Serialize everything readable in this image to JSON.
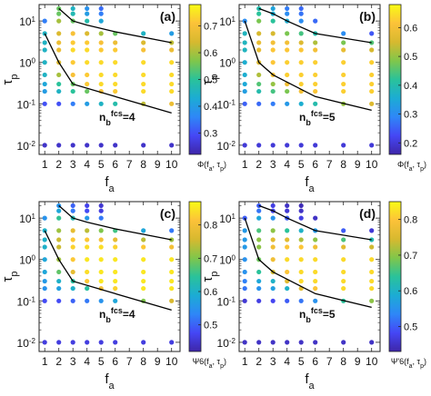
{
  "figure": {
    "colormap": [
      "#3e26a8",
      "#4547f5",
      "#2e87f7",
      "#1cacd4",
      "#2ac29a",
      "#81c64a",
      "#d7b92f",
      "#fcc239",
      "#f9fb15"
    ]
  },
  "chart_data": [
    {
      "type": "scatter",
      "panel": "(a)",
      "xlabel": "f_a",
      "ylabel": "τ_p",
      "x_ticks": [
        "1",
        "2",
        "3",
        "4",
        "5",
        "6",
        "7",
        "8",
        "9",
        "10"
      ],
      "y_ticks": [
        "10^-2",
        "10^-1",
        "10^0",
        "10^1"
      ],
      "xlim": [
        0.6,
        10.6
      ],
      "ylim": [
        0.006,
        25
      ],
      "yscale": "log",
      "annotation": "n_b^fcs=4",
      "colorbar": {
        "label": "Φ(f_a, τ_p)",
        "ticks": [
          "0.3",
          "0.4",
          "0.5",
          "0.6",
          "0.7"
        ],
        "range": [
          0.22,
          0.78
        ]
      },
      "boundary": {
        "upper": [
          [
            2,
            20
          ],
          [
            3,
            10
          ],
          [
            4,
            8
          ],
          [
            6,
            5.5
          ],
          [
            10,
            3
          ]
        ],
        "lower": [
          [
            1,
            5
          ],
          [
            2,
            1
          ],
          [
            3,
            0.3
          ],
          [
            6,
            0.15
          ],
          [
            10,
            0.06
          ]
        ]
      },
      "x": [
        1,
        2,
        3,
        4,
        5,
        6,
        8,
        10
      ],
      "y": [
        20,
        15,
        10,
        5,
        3,
        2,
        1,
        0.5,
        0.3,
        0.2,
        0.1,
        0.01
      ],
      "values": [
        [
          null,
          0.55,
          0.45,
          0.38,
          0.33,
          null,
          null,
          null
        ],
        [
          null,
          0.55,
          0.47,
          0.4,
          0.35,
          null,
          null,
          null
        ],
        [
          0.35,
          0.6,
          0.55,
          0.48,
          0.42,
          null,
          null,
          null
        ],
        [
          0.45,
          0.65,
          0.7,
          0.65,
          0.6,
          0.55,
          0.45,
          0.4
        ],
        [
          0.45,
          0.68,
          0.72,
          0.72,
          0.7,
          0.68,
          0.65,
          0.62
        ],
        [
          0.45,
          0.68,
          0.74,
          0.74,
          0.72,
          0.72,
          0.7,
          0.68
        ],
        [
          0.45,
          0.65,
          0.72,
          0.74,
          0.74,
          0.74,
          0.74,
          0.74
        ],
        [
          0.45,
          0.6,
          0.7,
          0.72,
          0.74,
          0.74,
          0.74,
          0.74
        ],
        [
          0.42,
          0.5,
          0.55,
          0.72,
          0.74,
          0.74,
          0.74,
          0.74
        ],
        [
          0.4,
          0.45,
          0.5,
          0.55,
          0.7,
          0.72,
          0.74,
          0.74
        ],
        [
          0.3,
          0.3,
          0.35,
          0.4,
          0.45,
          0.48,
          0.62,
          0.68
        ],
        [
          0.25,
          0.25,
          0.25,
          0.25,
          0.25,
          0.25,
          0.25,
          0.25
        ]
      ]
    },
    {
      "type": "scatter",
      "panel": "(b)",
      "xlabel": "f_a",
      "ylabel": "τ_p",
      "x_ticks": [
        "1",
        "2",
        "3",
        "4",
        "5",
        "6",
        "7",
        "8",
        "9",
        "10"
      ],
      "y_ticks": [
        "10^-2",
        "10^-1",
        "10^0",
        "10^1"
      ],
      "xlim": [
        0.6,
        10.6
      ],
      "ylim": [
        0.006,
        25
      ],
      "yscale": "log",
      "annotation": "n_b^fcs=5",
      "colorbar": {
        "label": "Φ(f_a, τ_p)",
        "ticks": [
          "0.2",
          "0.3",
          "0.4",
          "0.5",
          "0.6"
        ],
        "range": [
          0.16,
          0.68
        ]
      },
      "boundary": {
        "upper": [
          [
            2,
            20
          ],
          [
            3,
            15
          ],
          [
            4,
            10
          ],
          [
            6,
            5
          ],
          [
            10,
            3
          ]
        ],
        "lower": [
          [
            1,
            10
          ],
          [
            2,
            1
          ],
          [
            3,
            0.5
          ],
          [
            6,
            0.15
          ],
          [
            10,
            0.07
          ]
        ]
      },
      "x": [
        1,
        2,
        3,
        4,
        5,
        6,
        8,
        10
      ],
      "y": [
        20,
        15,
        10,
        5,
        3,
        2,
        1,
        0.5,
        0.3,
        0.2,
        0.1,
        0.01
      ],
      "values": [
        [
          null,
          0.4,
          0.34,
          0.28,
          0.26,
          null,
          null,
          null
        ],
        [
          null,
          0.42,
          0.36,
          0.3,
          0.27,
          null,
          null,
          null
        ],
        [
          0.3,
          0.48,
          0.42,
          0.36,
          0.3,
          0.26,
          null,
          null
        ],
        [
          0.38,
          0.55,
          0.55,
          0.48,
          0.44,
          0.4,
          0.3,
          0.24
        ],
        [
          0.38,
          0.58,
          0.6,
          0.6,
          0.56,
          0.52,
          0.48,
          0.45
        ],
        [
          0.38,
          0.58,
          0.62,
          0.62,
          0.62,
          0.6,
          0.58,
          0.55
        ],
        [
          0.36,
          0.56,
          0.62,
          0.63,
          0.63,
          0.63,
          0.63,
          0.63
        ],
        [
          0.36,
          0.52,
          0.6,
          0.63,
          0.63,
          0.63,
          0.63,
          0.63
        ],
        [
          0.35,
          0.45,
          0.5,
          0.6,
          0.63,
          0.63,
          0.63,
          0.63
        ],
        [
          0.33,
          0.4,
          0.44,
          0.48,
          0.6,
          0.62,
          0.63,
          0.63
        ],
        [
          0.25,
          0.26,
          0.28,
          0.32,
          0.36,
          0.4,
          0.5,
          0.56
        ],
        [
          0.2,
          0.2,
          0.2,
          0.2,
          0.2,
          0.2,
          0.2,
          0.2
        ]
      ]
    },
    {
      "type": "scatter",
      "panel": "(c)",
      "xlabel": "f_a",
      "ylabel": "τ_p",
      "x_ticks": [
        "1",
        "2",
        "3",
        "4",
        "5",
        "6",
        "7",
        "8",
        "9",
        "10"
      ],
      "y_ticks": [
        "10^-2",
        "10^-1",
        "10^0",
        "10^1"
      ],
      "xlim": [
        0.6,
        10.6
      ],
      "ylim": [
        0.006,
        25
      ],
      "yscale": "log",
      "annotation": "n_b^fcs=4",
      "colorbar": {
        "label": "Ψ6(f_a, τ_p)",
        "ticks": [
          "0.5",
          "0.6",
          "0.7",
          "0.8"
        ],
        "range": [
          0.42,
          0.87
        ]
      },
      "boundary": {
        "upper": [
          [
            2,
            20
          ],
          [
            3,
            10
          ],
          [
            4,
            8
          ],
          [
            6,
            5.5
          ],
          [
            10,
            3
          ]
        ],
        "lower": [
          [
            1,
            5
          ],
          [
            2,
            1
          ],
          [
            3,
            0.3
          ],
          [
            6,
            0.15
          ],
          [
            10,
            0.06
          ]
        ]
      },
      "x": [
        1,
        2,
        3,
        4,
        5,
        6,
        8,
        10
      ],
      "y": [
        20,
        15,
        10,
        5,
        3,
        2,
        1,
        0.5,
        0.3,
        0.2,
        0.1,
        0.01
      ],
      "values": [
        [
          null,
          0.55,
          0.5,
          0.47,
          0.45,
          null,
          null,
          null
        ],
        [
          null,
          0.58,
          0.52,
          0.48,
          0.46,
          null,
          null,
          null
        ],
        [
          0.55,
          0.65,
          0.62,
          0.56,
          0.52,
          null,
          null,
          null
        ],
        [
          0.6,
          0.72,
          0.78,
          0.74,
          0.7,
          0.66,
          0.58,
          0.52
        ],
        [
          0.6,
          0.75,
          0.82,
          0.82,
          0.8,
          0.78,
          0.74,
          0.72
        ],
        [
          0.6,
          0.75,
          0.83,
          0.84,
          0.84,
          0.83,
          0.82,
          0.8
        ],
        [
          0.58,
          0.72,
          0.82,
          0.85,
          0.85,
          0.85,
          0.85,
          0.85
        ],
        [
          0.58,
          0.68,
          0.78,
          0.84,
          0.85,
          0.85,
          0.85,
          0.85
        ],
        [
          0.56,
          0.6,
          0.64,
          0.82,
          0.85,
          0.85,
          0.85,
          0.85
        ],
        [
          0.55,
          0.57,
          0.6,
          0.64,
          0.8,
          0.83,
          0.85,
          0.85
        ],
        [
          0.48,
          0.48,
          0.5,
          0.52,
          0.55,
          0.58,
          0.7,
          0.76
        ],
        [
          0.46,
          0.46,
          0.46,
          0.46,
          0.46,
          0.46,
          0.46,
          0.46
        ]
      ]
    },
    {
      "type": "scatter",
      "panel": "(d)",
      "xlabel": "f_a",
      "ylabel": "τ_p",
      "x_ticks": [
        "1",
        "2",
        "3",
        "4",
        "5",
        "6",
        "7",
        "8",
        "9",
        "10"
      ],
      "y_ticks": [
        "10^-2",
        "10^-1",
        "10^0",
        "10^1"
      ],
      "xlim": [
        0.6,
        10.6
      ],
      "ylim": [
        0.006,
        25
      ],
      "yscale": "log",
      "annotation": "n_b^fcs=5",
      "colorbar": {
        "label": "Ψ'6(f_a, τ_p)",
        "ticks": [
          "0.5",
          "0.6",
          "0.7",
          "0.8"
        ],
        "range": [
          0.43,
          0.85
        ]
      },
      "boundary": {
        "upper": [
          [
            2,
            20
          ],
          [
            3,
            15
          ],
          [
            4,
            10
          ],
          [
            6,
            5
          ],
          [
            10,
            3
          ]
        ],
        "lower": [
          [
            1,
            10
          ],
          [
            2,
            1
          ],
          [
            3,
            0.5
          ],
          [
            6,
            0.15
          ],
          [
            10,
            0.07
          ]
        ]
      },
      "x": [
        1,
        2,
        3,
        4,
        5,
        6,
        8,
        10
      ],
      "y": [
        20,
        15,
        10,
        5,
        3,
        2,
        1,
        0.5,
        0.3,
        0.2,
        0.1,
        0.01
      ],
      "values": [
        [
          null,
          0.5,
          0.47,
          0.45,
          0.44,
          null,
          null,
          null
        ],
        [
          null,
          0.52,
          0.48,
          0.46,
          0.45,
          null,
          null,
          null
        ],
        [
          0.5,
          0.58,
          0.55,
          0.5,
          0.47,
          0.45,
          null,
          null
        ],
        [
          0.56,
          0.66,
          0.7,
          0.64,
          0.6,
          0.56,
          0.5,
          0.46
        ],
        [
          0.56,
          0.7,
          0.76,
          0.76,
          0.72,
          0.7,
          0.66,
          0.62
        ],
        [
          0.56,
          0.7,
          0.78,
          0.8,
          0.8,
          0.78,
          0.76,
          0.74
        ],
        [
          0.55,
          0.68,
          0.78,
          0.82,
          0.82,
          0.82,
          0.82,
          0.82
        ],
        [
          0.55,
          0.64,
          0.74,
          0.8,
          0.82,
          0.82,
          0.82,
          0.82
        ],
        [
          0.53,
          0.58,
          0.6,
          0.76,
          0.82,
          0.82,
          0.82,
          0.82
        ],
        [
          0.52,
          0.55,
          0.57,
          0.6,
          0.76,
          0.8,
          0.82,
          0.82
        ],
        [
          0.46,
          0.47,
          0.48,
          0.5,
          0.52,
          0.55,
          0.64,
          0.7
        ],
        [
          0.45,
          0.45,
          0.45,
          0.45,
          0.45,
          0.45,
          0.45,
          0.45
        ]
      ]
    }
  ]
}
